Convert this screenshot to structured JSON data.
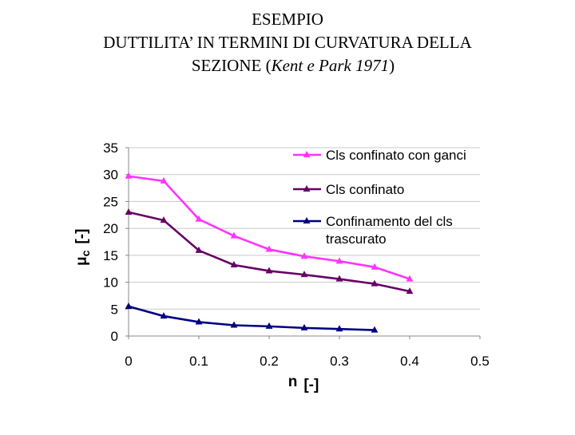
{
  "title": {
    "line1": "ESEMPIO",
    "line2": "DUTTILITA’ IN TERMINI DI CURVATURA DELLA",
    "line3_pre": "SEZIONE (",
    "line3_italic": "Kent e Park 1971",
    "line3_post": ")"
  },
  "chart_data": {
    "type": "line",
    "xlabel_main": "n",
    "xlabel_unit": "[-]",
    "ylabel_symbol": "μ",
    "ylabel_sub": "c",
    "ylabel_unit": "[-]",
    "xlim": [
      0,
      0.5
    ],
    "ylim": [
      0,
      35
    ],
    "xticks": [
      0,
      0.1,
      0.2,
      0.3,
      0.4,
      0.5
    ],
    "yticks": [
      0,
      5,
      10,
      15,
      20,
      25,
      30,
      35
    ],
    "grid": "horizontal",
    "legend_position": "top-right",
    "series": [
      {
        "name_lines": [
          "Cls confinato con ganci"
        ],
        "color": "#ff33ff",
        "marker": "triangle",
        "x": [
          0,
          0.05,
          0.1,
          0.15,
          0.2,
          0.25,
          0.3,
          0.35,
          0.4
        ],
        "y": [
          29.7,
          28.8,
          21.7,
          18.6,
          16.1,
          14.8,
          13.9,
          12.8,
          10.6
        ]
      },
      {
        "name_lines": [
          "Cls confinato"
        ],
        "color": "#660066",
        "marker": "triangle",
        "x": [
          0,
          0.05,
          0.1,
          0.15,
          0.2,
          0.25,
          0.3,
          0.35,
          0.4
        ],
        "y": [
          23.0,
          21.5,
          15.9,
          13.2,
          12.1,
          11.4,
          10.6,
          9.7,
          8.3
        ]
      },
      {
        "name_lines": [
          "Confinamento del cls",
          "trascurato"
        ],
        "color": "#000080",
        "marker": "triangle",
        "x": [
          0,
          0.05,
          0.1,
          0.15,
          0.2,
          0.25,
          0.3,
          0.35
        ],
        "y": [
          5.5,
          3.7,
          2.6,
          2.0,
          1.8,
          1.5,
          1.3,
          1.1
        ]
      }
    ]
  }
}
